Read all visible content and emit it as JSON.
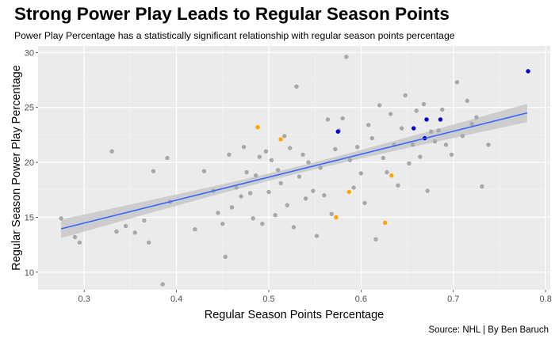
{
  "title": "Strong Power Play Leads to Regular Season Points",
  "subtitle": "Power Play Percentage has a statistically significant relationship with regular season points percentage",
  "caption": "Source: NHL | By Ben Baruch",
  "colors": {
    "panel": "#ebebeb",
    "grid_major": "#ffffff",
    "grid_minor": "#f4f4f4",
    "point_default": "#a8a8a8",
    "point_orange": "#ffa500",
    "point_blue": "#0000cd",
    "trend_line": "#3366ff",
    "confidence_band": "#c8c8c8"
  },
  "chart_data": {
    "type": "scatter",
    "xlabel": "Regular Season Points Percentage",
    "ylabel": "Regular Season Power Play Percentage",
    "xlim": [
      0.25,
      0.805
    ],
    "ylim": [
      8.4,
      30.6
    ],
    "x_ticks": [
      0.3,
      0.4,
      0.5,
      0.6,
      0.7,
      0.8
    ],
    "x_tick_labels": [
      "0.3",
      "0.4",
      "0.5",
      "0.6",
      "0.7",
      "0.8"
    ],
    "y_ticks": [
      10,
      15,
      20,
      25,
      30
    ],
    "y_tick_labels": [
      "10",
      "15",
      "20",
      "25",
      "30"
    ],
    "grid": true,
    "trend_line": {
      "method": "linear regression",
      "x_range": [
        0.275,
        0.78
      ],
      "start_y": 13.95,
      "end_y": 24.5,
      "ci_half_width_ends": 0.85,
      "ci_half_width_center": 0.32,
      "x_center": 0.53
    },
    "series": [
      {
        "color_key": "point_default",
        "points": [
          [
            0.275,
            14.9
          ],
          [
            0.29,
            13.2
          ],
          [
            0.295,
            12.7
          ],
          [
            0.33,
            21.0
          ],
          [
            0.335,
            13.7
          ],
          [
            0.345,
            14.2
          ],
          [
            0.355,
            13.6
          ],
          [
            0.365,
            14.7
          ],
          [
            0.37,
            12.7
          ],
          [
            0.375,
            19.2
          ],
          [
            0.385,
            8.9
          ],
          [
            0.39,
            20.4
          ],
          [
            0.393,
            16.4
          ],
          [
            0.42,
            13.9
          ],
          [
            0.43,
            19.2
          ],
          [
            0.44,
            17.4
          ],
          [
            0.445,
            15.4
          ],
          [
            0.45,
            14.4
          ],
          [
            0.453,
            11.4
          ],
          [
            0.457,
            20.7
          ],
          [
            0.46,
            15.9
          ],
          [
            0.465,
            17.7
          ],
          [
            0.47,
            16.9
          ],
          [
            0.473,
            21.4
          ],
          [
            0.476,
            19.1
          ],
          [
            0.48,
            17.2
          ],
          [
            0.483,
            14.9
          ],
          [
            0.486,
            18.8
          ],
          [
            0.49,
            20.5
          ],
          [
            0.493,
            14.4
          ],
          [
            0.497,
            21.0
          ],
          [
            0.5,
            17.3
          ],
          [
            0.503,
            20.2
          ],
          [
            0.507,
            15.2
          ],
          [
            0.51,
            19.3
          ],
          [
            0.513,
            18.1
          ],
          [
            0.517,
            22.4
          ],
          [
            0.52,
            16.1
          ],
          [
            0.523,
            21.3
          ],
          [
            0.527,
            14.1
          ],
          [
            0.53,
            26.9
          ],
          [
            0.533,
            18.7
          ],
          [
            0.537,
            20.7
          ],
          [
            0.54,
            16.7
          ],
          [
            0.543,
            20.0
          ],
          [
            0.548,
            17.4
          ],
          [
            0.552,
            13.3
          ],
          [
            0.556,
            19.5
          ],
          [
            0.56,
            17.0
          ],
          [
            0.564,
            23.9
          ],
          [
            0.568,
            15.3
          ],
          [
            0.572,
            21.2
          ],
          [
            0.576,
            22.9
          ],
          [
            0.58,
            24.0
          ],
          [
            0.584,
            29.6
          ],
          [
            0.588,
            20.2
          ],
          [
            0.592,
            17.7
          ],
          [
            0.596,
            21.4
          ],
          [
            0.6,
            19.0
          ],
          [
            0.604,
            16.3
          ],
          [
            0.608,
            23.4
          ],
          [
            0.612,
            22.2
          ],
          [
            0.616,
            13.0
          ],
          [
            0.62,
            25.2
          ],
          [
            0.624,
            20.4
          ],
          [
            0.628,
            19.1
          ],
          [
            0.632,
            24.4
          ],
          [
            0.636,
            21.6
          ],
          [
            0.64,
            17.9
          ],
          [
            0.644,
            23.1
          ],
          [
            0.648,
            26.1
          ],
          [
            0.652,
            19.9
          ],
          [
            0.656,
            21.6
          ],
          [
            0.66,
            24.7
          ],
          [
            0.664,
            20.5
          ],
          [
            0.668,
            25.3
          ],
          [
            0.672,
            17.4
          ],
          [
            0.676,
            22.8
          ],
          [
            0.68,
            21.9
          ],
          [
            0.684,
            22.9
          ],
          [
            0.688,
            24.8
          ],
          [
            0.692,
            21.6
          ],
          [
            0.698,
            20.7
          ],
          [
            0.704,
            27.3
          ],
          [
            0.71,
            22.4
          ],
          [
            0.715,
            25.6
          ],
          [
            0.72,
            23.5
          ],
          [
            0.725,
            24.1
          ],
          [
            0.731,
            17.8
          ],
          [
            0.738,
            21.6
          ]
        ]
      },
      {
        "color_key": "point_orange",
        "points": [
          [
            0.488,
            23.2
          ],
          [
            0.513,
            22.1
          ],
          [
            0.573,
            15.0
          ],
          [
            0.587,
            17.3
          ],
          [
            0.626,
            14.5
          ],
          [
            0.633,
            18.8
          ]
        ]
      },
      {
        "color_key": "point_blue",
        "points": [
          [
            0.575,
            22.8
          ],
          [
            0.657,
            23.1
          ],
          [
            0.669,
            22.2
          ],
          [
            0.671,
            23.9
          ],
          [
            0.686,
            23.9
          ],
          [
            0.781,
            28.3
          ]
        ]
      }
    ]
  }
}
